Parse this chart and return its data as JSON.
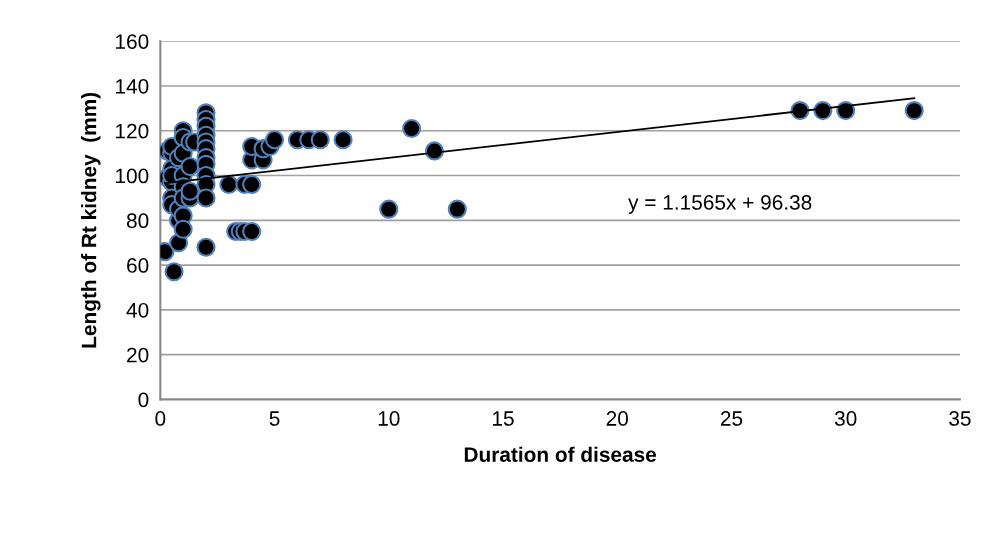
{
  "chart_data": {
    "type": "scatter",
    "xlabel": "Duration of disease",
    "ylabel": "Length of Rt kidney  (mm)",
    "xlim": [
      0,
      35
    ],
    "xticks": [
      0,
      5,
      10,
      15,
      20,
      25,
      30,
      35
    ],
    "ylim": [
      0,
      160
    ],
    "yticks": [
      0,
      20,
      40,
      60,
      80,
      100,
      120,
      140,
      160
    ],
    "grid": "y",
    "marker": "circle",
    "legend": false,
    "annotations": [
      "y = 1.1565x + 96.38"
    ],
    "series": [
      {
        "color": "#000000",
        "x": [
          0.2,
          0.3,
          0.3,
          0.5,
          0.5,
          0.5,
          0.5,
          0.5,
          0.5,
          0.5,
          0.6,
          0.8,
          0.8,
          0.8,
          0.8,
          1,
          1,
          1,
          1,
          1,
          1,
          1,
          1,
          1.3,
          1.3,
          1.3,
          1.3,
          1.5,
          2,
          2,
          2,
          2,
          2,
          2,
          2,
          2,
          2,
          2,
          2,
          2,
          3,
          3.3,
          3.5,
          3.7,
          3.7,
          4,
          4,
          4,
          4,
          4.5,
          4.5,
          4.8,
          5,
          6,
          6.5,
          7,
          8,
          10,
          11,
          12,
          13,
          28,
          29,
          30,
          33
        ],
        "values": [
          66,
          99,
          111,
          110,
          113,
          103,
          97,
          90,
          87,
          100,
          57,
          70,
          80,
          85,
          108,
          120,
          117,
          110,
          100,
          95,
          82,
          76,
          90,
          90,
          104,
          115,
          93,
          115,
          128,
          125,
          122,
          118,
          115,
          112,
          108,
          105,
          100,
          96,
          90,
          68,
          96,
          75,
          75,
          96,
          75,
          75,
          96,
          107,
          113,
          107,
          112,
          113,
          116,
          116,
          116,
          116,
          116,
          85,
          121,
          111,
          85,
          129,
          129,
          129,
          129
        ]
      },
      {
        "type": "line",
        "color": "#000000",
        "marker": "none",
        "x": [
          0.2,
          33
        ],
        "values": [
          96.6,
          134.5
        ]
      }
    ]
  }
}
